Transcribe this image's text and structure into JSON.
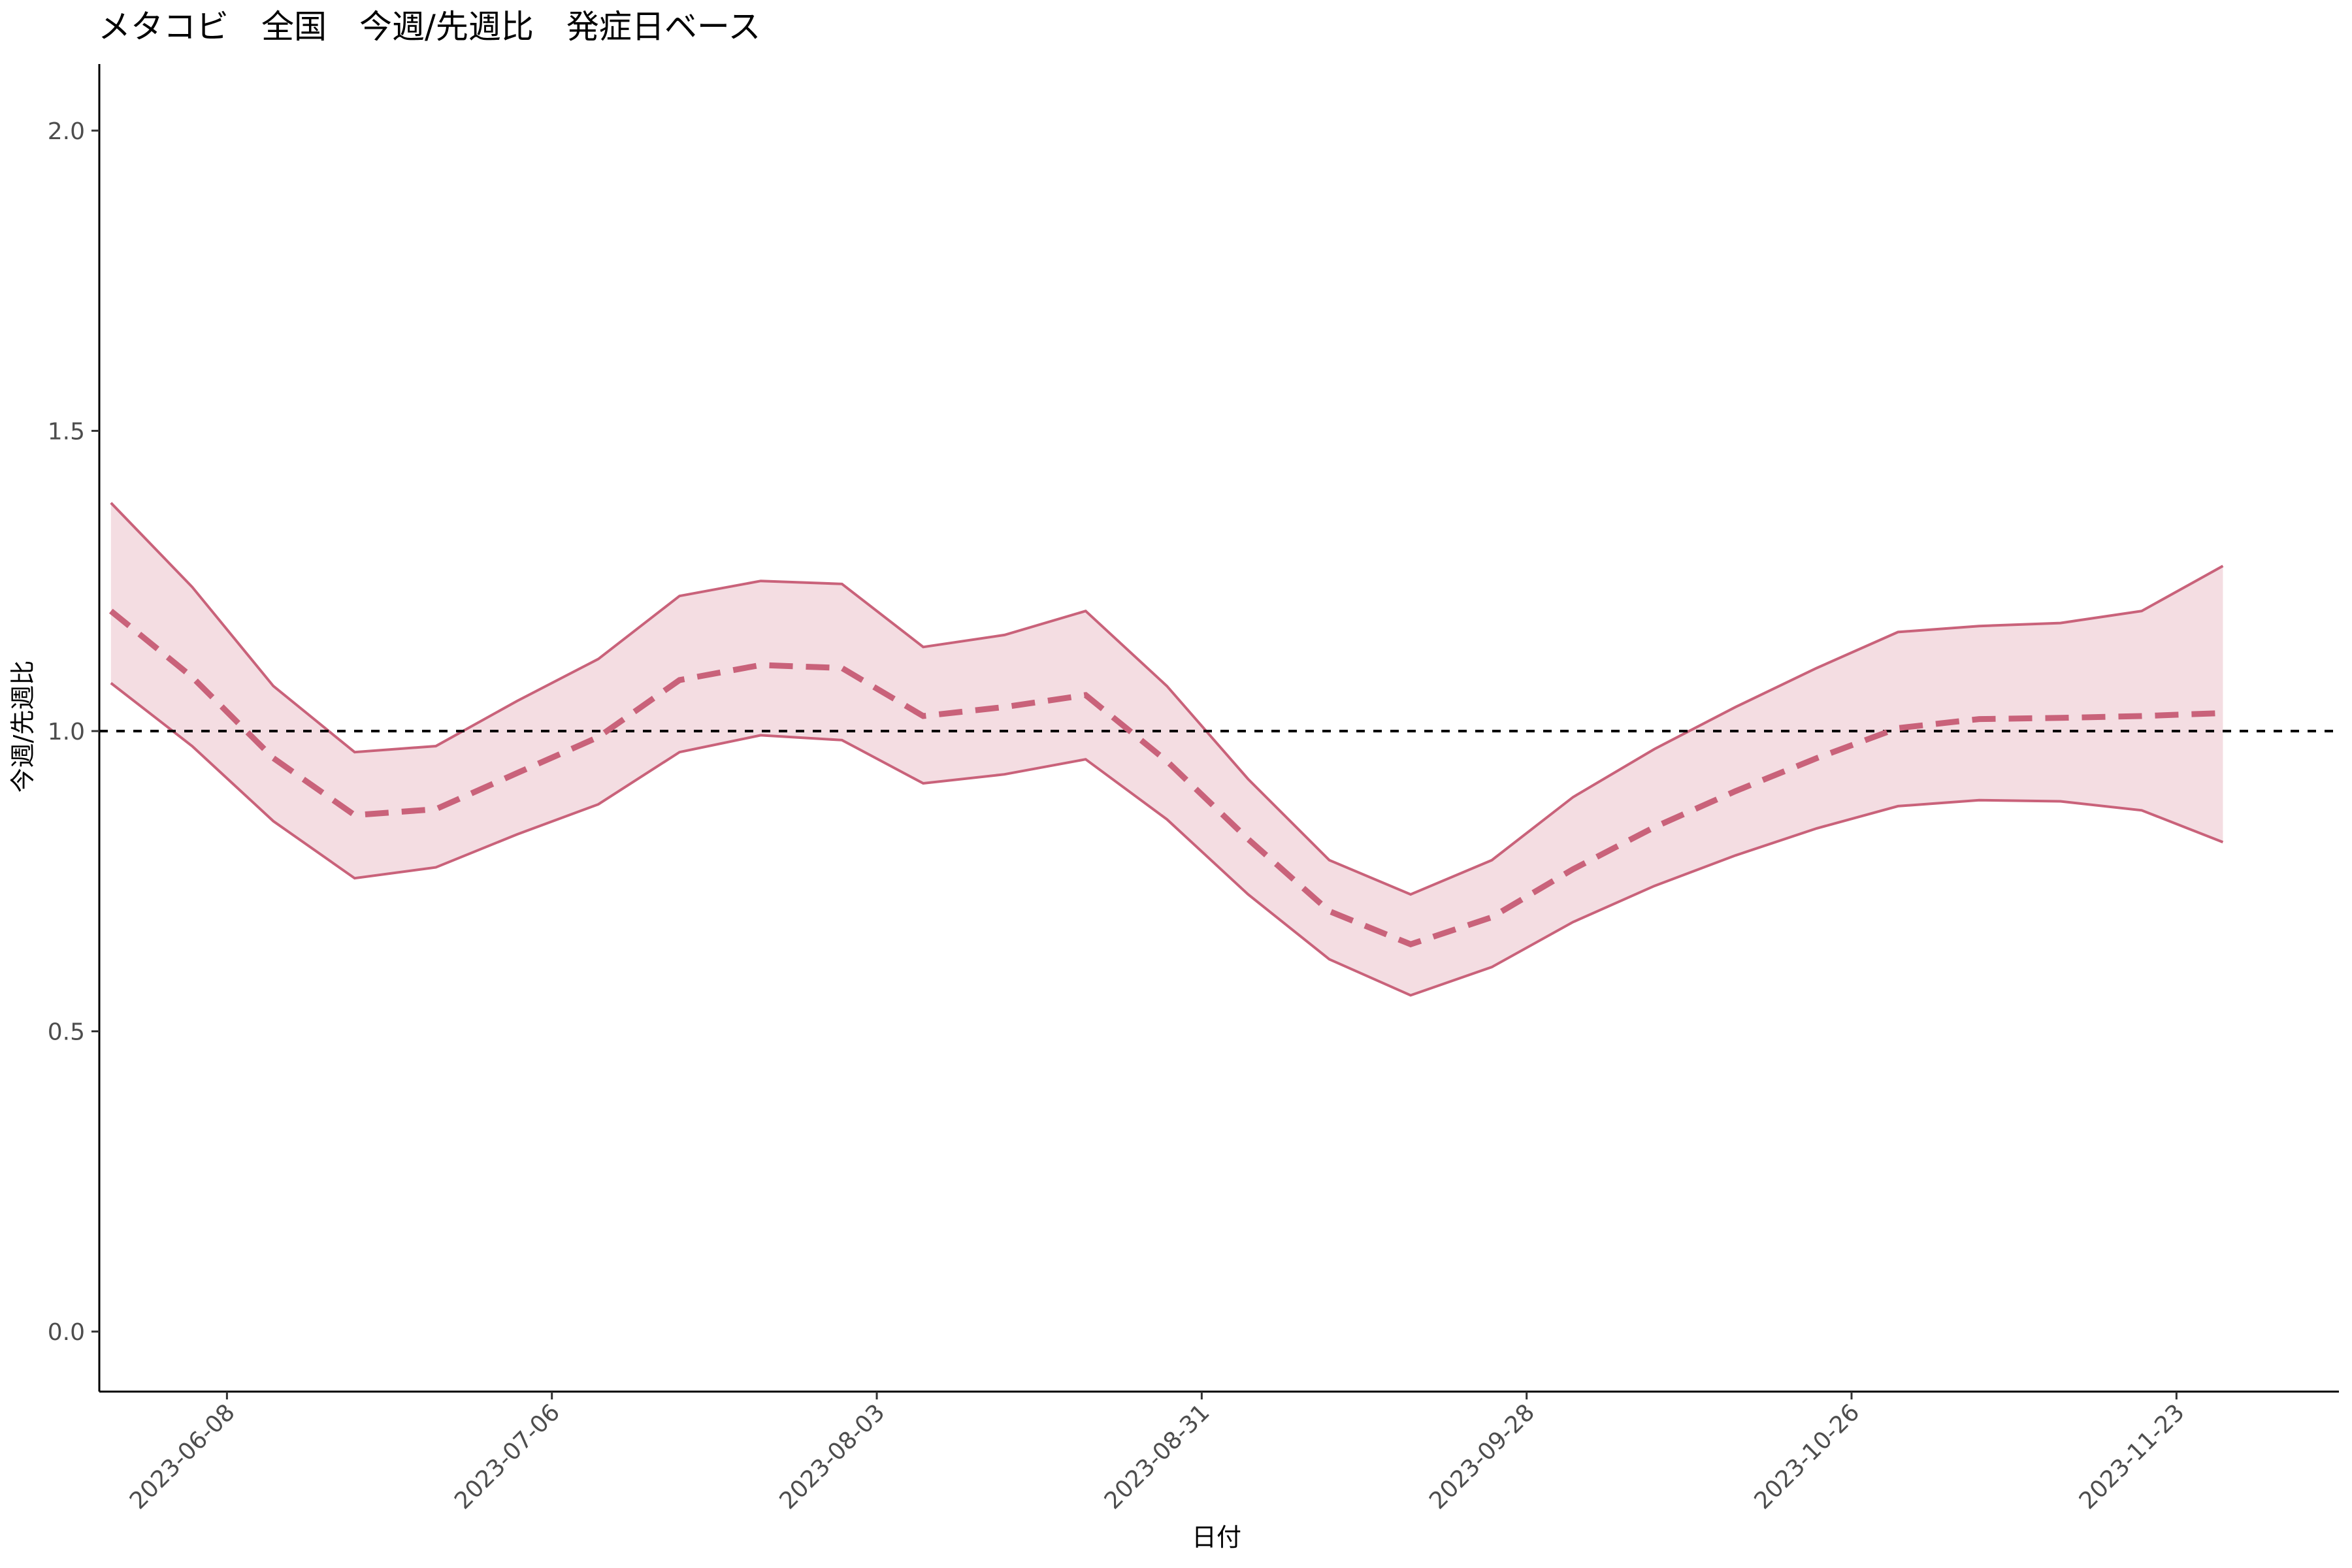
{
  "chart_data": {
    "type": "line",
    "title": "メタコビ　全国　今週/先週比　発症日ベース",
    "xlabel": "日付",
    "ylabel": "今週/先週比",
    "ylim": [
      -0.1,
      2.1
    ],
    "xlim": [
      "2023-05-28",
      "2023-12-07"
    ],
    "x_ticks": [
      "2023-06-08",
      "2023-07-06",
      "2023-08-03",
      "2023-08-31",
      "2023-09-28",
      "2023-10-26",
      "2023-11-23"
    ],
    "y_ticks": [
      "0.0",
      "0.5",
      "1.0",
      "1.5",
      "2.0"
    ],
    "y_tick_values": [
      0,
      0.5,
      1.0,
      1.5,
      2.0
    ],
    "reference_line": 1.0,
    "grid": false,
    "legend": "none",
    "x": [
      "2023-05-29",
      "2023-06-05",
      "2023-06-12",
      "2023-06-19",
      "2023-06-26",
      "2023-07-03",
      "2023-07-10",
      "2023-07-17",
      "2023-07-24",
      "2023-07-31",
      "2023-08-07",
      "2023-08-14",
      "2023-08-21",
      "2023-08-28",
      "2023-09-04",
      "2023-09-11",
      "2023-09-18",
      "2023-09-25",
      "2023-10-02",
      "2023-10-09",
      "2023-10-16",
      "2023-10-23",
      "2023-10-30",
      "2023-11-06",
      "2023-11-13",
      "2023-11-20",
      "2023-11-27"
    ],
    "series": [
      {
        "role": "upper",
        "values": [
          1.38,
          1.24,
          1.075,
          0.965,
          0.975,
          1.05,
          1.12,
          1.225,
          1.25,
          1.245,
          1.14,
          1.16,
          1.2,
          1.075,
          0.92,
          0.785,
          0.728,
          0.785,
          0.89,
          0.97,
          1.04,
          1.105,
          1.165,
          1.175,
          1.18,
          1.2,
          1.275
        ]
      },
      {
        "role": "estimate",
        "values": [
          1.2,
          1.09,
          0.955,
          0.86,
          0.87,
          0.93,
          0.99,
          1.085,
          1.11,
          1.105,
          1.025,
          1.04,
          1.06,
          0.95,
          0.82,
          0.7,
          0.645,
          0.69,
          0.77,
          0.84,
          0.9,
          0.955,
          1.005,
          1.02,
          1.022,
          1.025,
          1.03
        ]
      },
      {
        "role": "lower",
        "values": [
          1.08,
          0.975,
          0.85,
          0.755,
          0.773,
          0.828,
          0.878,
          0.965,
          0.993,
          0.985,
          0.913,
          0.928,
          0.953,
          0.853,
          0.728,
          0.62,
          0.56,
          0.607,
          0.682,
          0.742,
          0.793,
          0.838,
          0.875,
          0.885,
          0.883,
          0.868,
          0.815
        ]
      }
    ],
    "colors": {
      "line": "#c9627a",
      "band_fill": "#f4dde2",
      "reference": "#000000",
      "axis": "#000000"
    }
  }
}
